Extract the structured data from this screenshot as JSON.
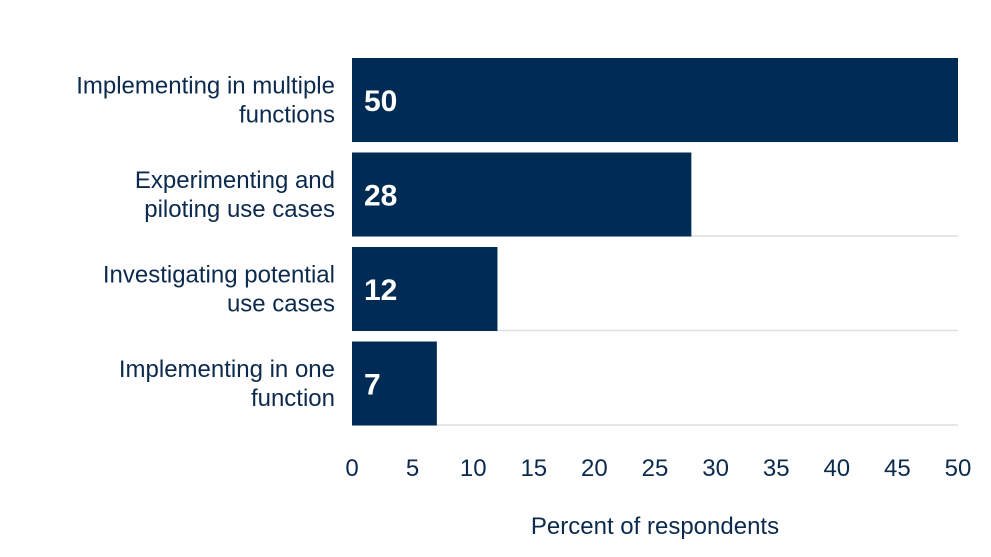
{
  "chart_data": {
    "type": "bar",
    "orientation": "horizontal",
    "categories": [
      [
        "Implementing in multiple",
        "functions"
      ],
      [
        "Experimenting and",
        "piloting use cases"
      ],
      [
        "Investigating potential",
        "use cases"
      ],
      [
        "Implementing in one",
        "function"
      ]
    ],
    "values": [
      50,
      28,
      12,
      7
    ],
    "data_labels": [
      "50",
      "28",
      "12",
      "7"
    ],
    "xlabel": "Percent of respondents",
    "xlim": [
      0,
      50
    ],
    "xticks": [
      0,
      5,
      10,
      15,
      20,
      25,
      30,
      35,
      40,
      45,
      50
    ],
    "grid": "vertical-none, horizontal-separators",
    "bar_color": "#002b55",
    "text_color": "#0b2a4e"
  }
}
